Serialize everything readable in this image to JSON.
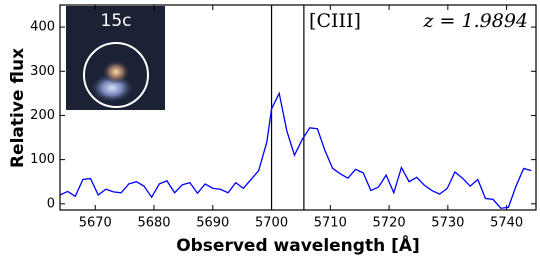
{
  "chart_data": {
    "type": "line",
    "x_label": "Observed wavelength [Å]",
    "y_label": "Relative flux",
    "x": [
      5664.0,
      5665.3,
      5666.6,
      5667.9,
      5669.2,
      5670.5,
      5671.8,
      5673.1,
      5674.4,
      5675.7,
      5677.0,
      5678.3,
      5679.6,
      5680.9,
      5682.2,
      5683.5,
      5684.8,
      5686.1,
      5687.4,
      5688.7,
      5690.0,
      5691.3,
      5692.6,
      5693.9,
      5695.2,
      5696.5,
      5697.8,
      5699.2,
      5700.0,
      5701.3,
      5702.6,
      5703.9,
      5705.2,
      5706.5,
      5707.8,
      5709.1,
      5710.4,
      5711.7,
      5713.0,
      5714.3,
      5715.6,
      5716.9,
      5718.2,
      5719.5,
      5720.8,
      5722.1,
      5723.4,
      5724.7,
      5726.0,
      5727.3,
      5728.6,
      5729.9,
      5731.2,
      5732.5,
      5733.8,
      5735.1,
      5736.4,
      5737.7,
      5739.0,
      5740.3,
      5741.6,
      5742.9,
      5744.2
    ],
    "series": [
      {
        "color": "#0000ff",
        "values": [
          20,
          28,
          17,
          55,
          57,
          20,
          33,
          27,
          25,
          45,
          50,
          40,
          15,
          45,
          52,
          25,
          43,
          48,
          24,
          45,
          35,
          33,
          25,
          48,
          35,
          55,
          75,
          140,
          215,
          250,
          165,
          110,
          145,
          172,
          170,
          120,
          80,
          68,
          58,
          78,
          70,
          30,
          38,
          65,
          25,
          82,
          50,
          60,
          42,
          30,
          22,
          35,
          72,
          58,
          40,
          55,
          12,
          10,
          -10,
          -8,
          40,
          80,
          75
        ]
      }
    ],
    "xlim": [
      5664,
      5745
    ],
    "ylim": [
      -14,
      450
    ],
    "xticks": [
      5670,
      5680,
      5690,
      5700,
      5710,
      5720,
      5730,
      5740
    ],
    "yticks": [
      0,
      100,
      200,
      300,
      400
    ],
    "vlines": [
      5700,
      5705.5
    ],
    "annotations": [
      "[CIII]",
      "z = 1.9894"
    ],
    "inset_label": "15c"
  }
}
